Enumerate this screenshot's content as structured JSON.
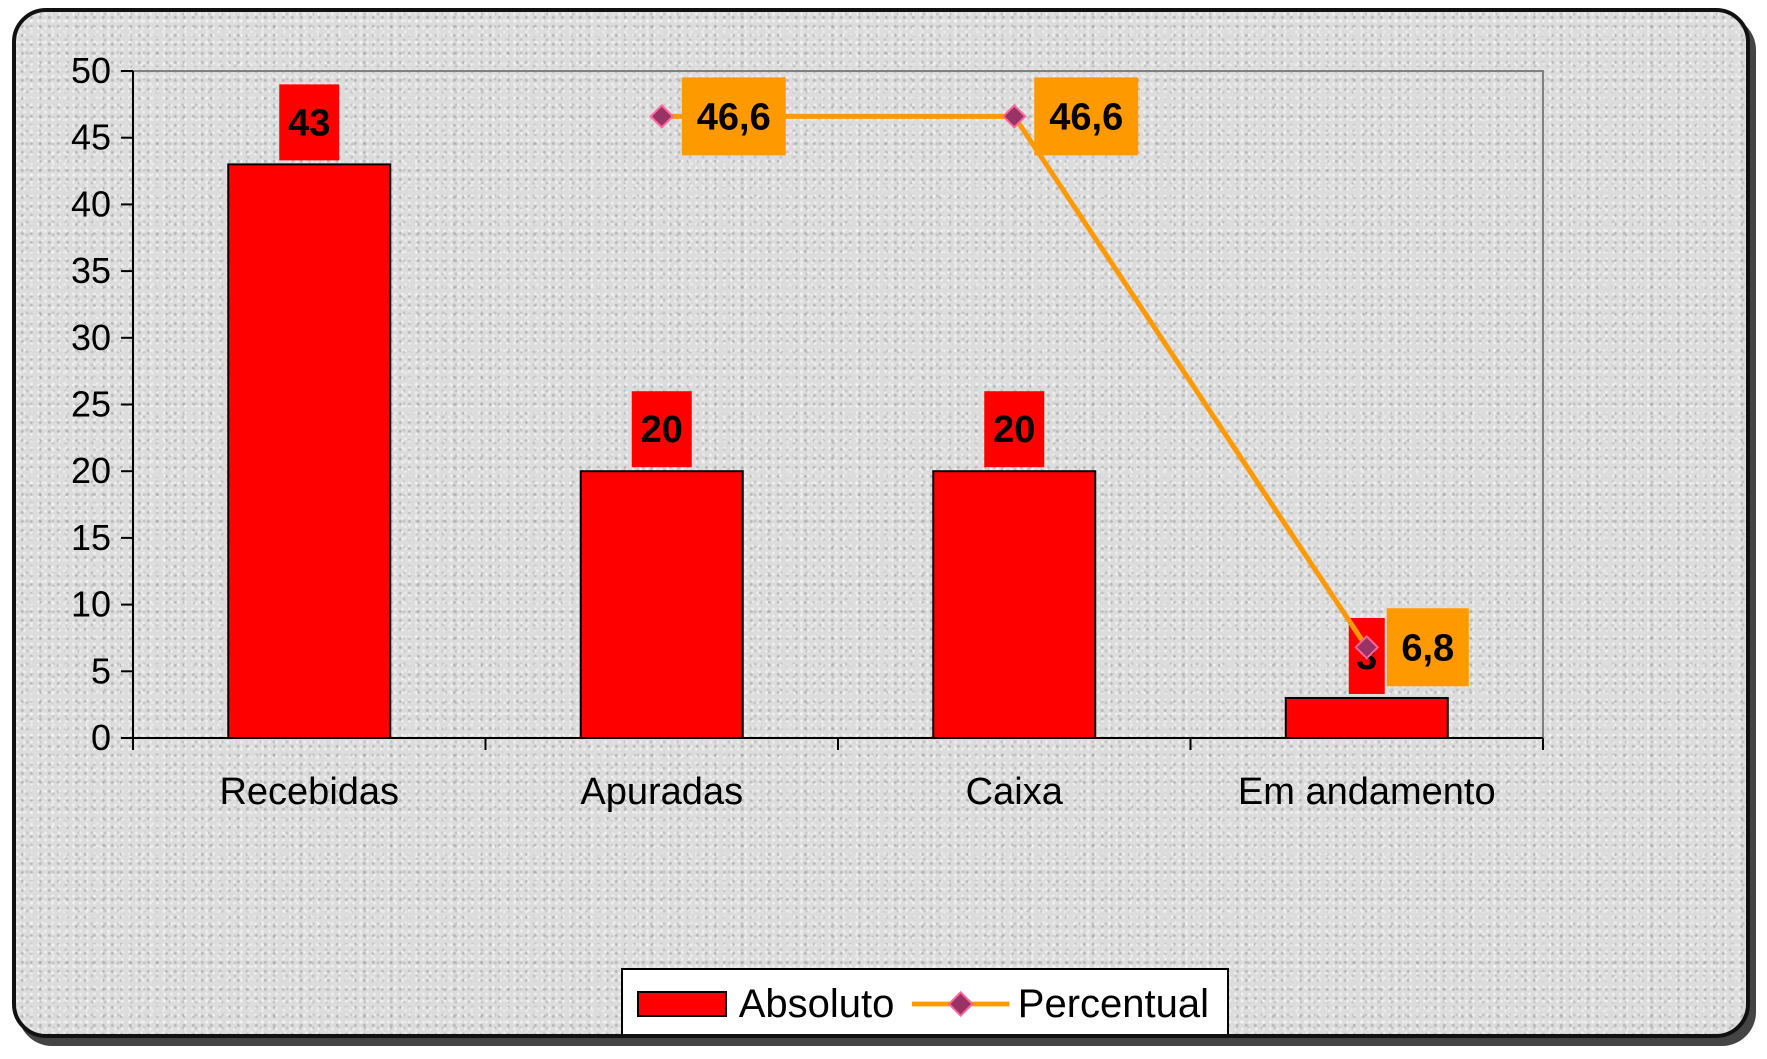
{
  "chart_data": {
    "type": "bar",
    "categories": [
      "Recebidas",
      "Apuradas",
      "Caixa",
      "Em andamento"
    ],
    "ylim": [
      0,
      50
    ],
    "yticks": [
      "0",
      "5",
      "10",
      "15",
      "20",
      "25",
      "30",
      "35",
      "40",
      "45",
      "50"
    ],
    "yticks_values": [
      0,
      5,
      10,
      15,
      20,
      25,
      30,
      35,
      40,
      45,
      50
    ],
    "series": [
      {
        "name": "Absoluto",
        "type": "bar",
        "values": [
          43,
          20,
          20,
          3
        ],
        "labels": [
          "43",
          "20",
          "20",
          "3"
        ],
        "color": "#ff0000"
      },
      {
        "name": "Percentual",
        "type": "line",
        "values": [
          null,
          46.6,
          46.6,
          6.8
        ],
        "labels": [
          "",
          "46,6",
          "46,6",
          "6,8"
        ],
        "color": "#ff9900",
        "marker_color": "#993366"
      }
    ],
    "grid": false,
    "legend": "bottom"
  },
  "legend": {
    "absoluto": "Absoluto",
    "percentual": "Percentual"
  }
}
